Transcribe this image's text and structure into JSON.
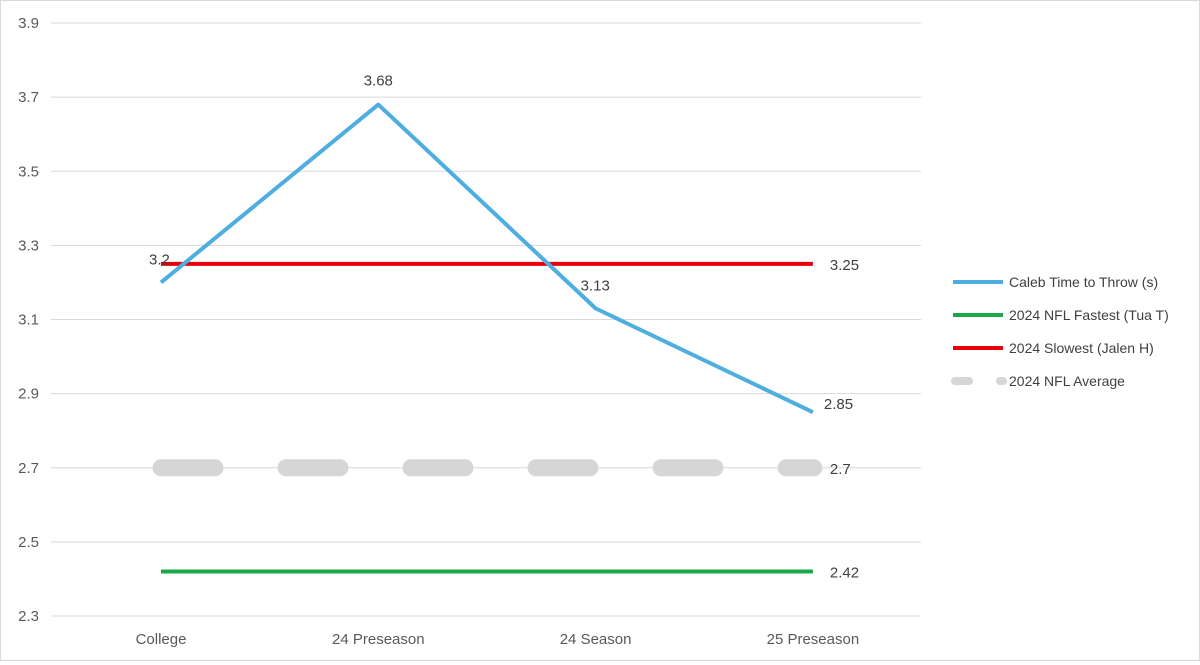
{
  "chart_data": {
    "type": "line",
    "categories": [
      "College",
      "24 Preseason",
      "24 Season",
      "25 Preseason"
    ],
    "ylim": [
      2.3,
      3.9
    ],
    "yticks": [
      "3.9",
      "3.7",
      "3.5",
      "3.3",
      "3.1",
      "2.9",
      "2.7",
      "2.5",
      "2.3"
    ],
    "ytick_values": [
      3.9,
      3.7,
      3.5,
      3.3,
      3.1,
      2.9,
      2.7,
      2.5,
      2.3
    ],
    "grid": "horizontal",
    "legend_position": "right",
    "series": [
      {
        "name": "Caleb Time to Throw (s)",
        "values": [
          3.2,
          3.68,
          3.13,
          2.85
        ],
        "labels": [
          "3.2",
          "3.68",
          "3.13",
          "2.85"
        ],
        "color": "#4eaee0",
        "style": "solid"
      },
      {
        "name": "2024 NFL Fastest (Tua T)",
        "values": [
          2.42,
          2.42,
          2.42,
          2.42
        ],
        "labels": [
          "",
          "",
          "",
          "2.42"
        ],
        "color": "#1aa84a",
        "style": "solid"
      },
      {
        "name": "2024 Slowest (Jalen H)",
        "values": [
          3.25,
          3.25,
          3.25,
          3.25
        ],
        "labels": [
          "",
          "",
          "",
          "3.25"
        ],
        "color": "#e8000b",
        "style": "solid"
      },
      {
        "name": "2024 NFL Average",
        "values": [
          2.7,
          2.7,
          2.7,
          2.7
        ],
        "labels": [
          "",
          "",
          "",
          "2.7"
        ],
        "color": "#d6d6d6",
        "style": "dashed"
      }
    ]
  }
}
